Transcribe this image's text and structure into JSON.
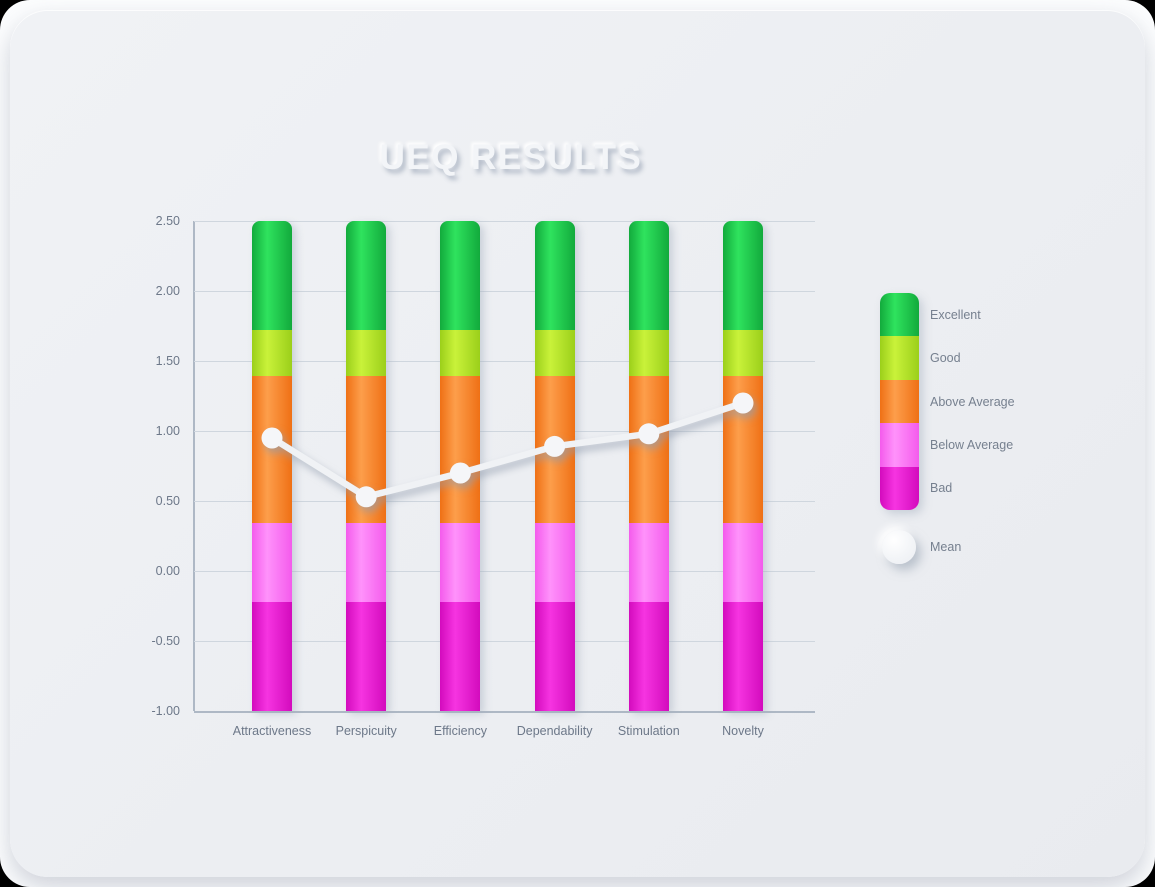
{
  "title": "UEQ RESULTS",
  "chart_data": {
    "type": "bar",
    "subtype": "stacked-benchmark-bands-with-mean-line",
    "title": "UEQ RESULTS",
    "categories": [
      "Attractiveness",
      "Perspicuity",
      "Efficiency",
      "Dependability",
      "Stimulation",
      "Novelty"
    ],
    "series": [
      {
        "name": "Mean",
        "type": "line",
        "values": [
          0.95,
          0.53,
          0.7,
          0.89,
          0.98,
          1.2
        ]
      }
    ],
    "bands": [
      {
        "label": "Bad",
        "from": -1.0,
        "to": -0.22,
        "color_edge": "#d30bbd",
        "color_mid": "#f634e1"
      },
      {
        "label": "Below Average",
        "from": -0.22,
        "to": 0.34,
        "color_edge": "#f45bec",
        "color_mid": "#ff92fb"
      },
      {
        "label": "Above Average",
        "from": 0.34,
        "to": 1.39,
        "color_edge": "#ef7015",
        "color_mid": "#fd9e4b"
      },
      {
        "label": "Good",
        "from": 1.39,
        "to": 1.72,
        "color_edge": "#9bcf1a",
        "color_mid": "#c9f23a"
      },
      {
        "label": "Excellent",
        "from": 1.72,
        "to": 2.5,
        "color_edge": "#12aa3c",
        "color_mid": "#2fe35e"
      }
    ],
    "ylim": [
      -1.0,
      2.5
    ],
    "yticks": [
      "2.50",
      "2.00",
      "1.50",
      "1.00",
      "0.50",
      "0.00",
      "-0.50",
      "-1.00"
    ],
    "xlabel": "",
    "ylabel": "",
    "grid": true,
    "legend_position": "right",
    "legend": {
      "mean_label": "Mean"
    }
  },
  "colors": {
    "mean_line": "#f0f2f5",
    "mean_dot": "#f5f6f9",
    "grid_line": "#cfd6de",
    "axis_line": "#aeb8c5",
    "tick_text": "#6d7889",
    "legend_text": "#76808f",
    "card_bg": "#edeff3",
    "page_bg": "#fcfdfe",
    "title_color": "#f3f5f8"
  }
}
